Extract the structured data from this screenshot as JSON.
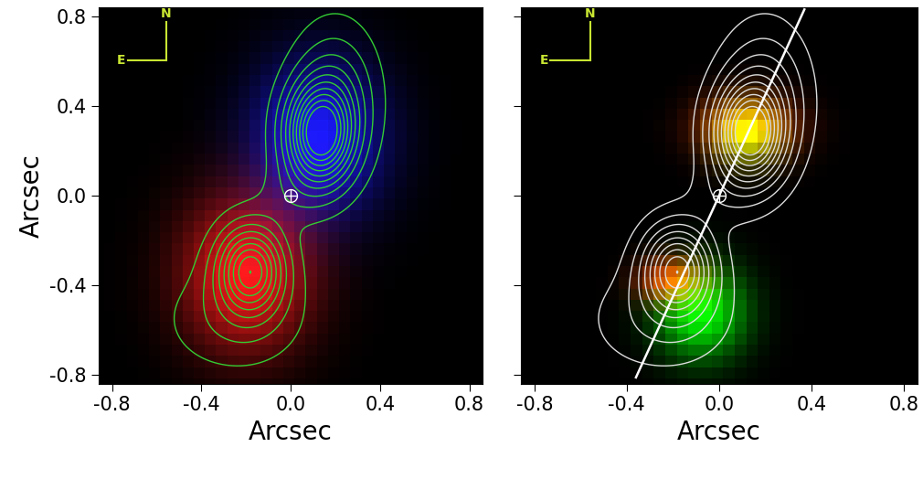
{
  "chart_data": [
    {
      "type": "image",
      "xlabel": "Arcsec",
      "ylabel": "Arcsec",
      "xlim": [
        -0.86,
        0.86
      ],
      "ylim": [
        -0.84,
        0.84
      ],
      "xticks": [
        -0.8,
        -0.4,
        0.0,
        0.4,
        0.8
      ],
      "yticks": [
        -0.8,
        -0.4,
        0.0,
        0.4,
        0.8
      ],
      "tick_labels": true,
      "compass": {
        "north": "N",
        "east": "E",
        "color": "#c8e632"
      },
      "center": [
        0.0,
        0.0
      ],
      "emission": [
        {
          "x": 0.12,
          "y": 0.25,
          "sx": 0.2,
          "sy": 0.24,
          "amp": 1.0,
          "color": "#1a1aff"
        },
        {
          "x": -0.2,
          "y": -0.35,
          "sx": 0.2,
          "sy": 0.24,
          "amp": 1.0,
          "color": "#ff1a1a"
        }
      ],
      "contours": {
        "color": "#33cc33",
        "components": [
          {
            "x": 0.13,
            "y": 0.27,
            "sx": 0.1,
            "sy": 0.15,
            "amp": 1.0
          },
          {
            "x": 0.2,
            "y": 0.45,
            "sx": 0.12,
            "sy": 0.2,
            "amp": 0.3
          },
          {
            "x": -0.18,
            "y": -0.33,
            "sx": 0.1,
            "sy": 0.13,
            "amp": 0.8
          },
          {
            "x": -0.25,
            "y": -0.55,
            "sx": 0.2,
            "sy": 0.15,
            "amp": 0.15
          },
          {
            "x": 0.0,
            "y": 0.0,
            "sx": 0.1,
            "sy": 0.1,
            "amp": 0.08
          }
        ],
        "levels": [
          0.06,
          0.15,
          0.25,
          0.35,
          0.45,
          0.55,
          0.65,
          0.75,
          0.85,
          0.95
        ]
      }
    },
    {
      "type": "image",
      "xlabel": "Arcsec",
      "xlim": [
        -0.86,
        0.86
      ],
      "ylim": [
        -0.84,
        0.84
      ],
      "xticks": [
        -0.8,
        -0.4,
        0.0,
        0.4,
        0.8
      ],
      "yticks": [
        -0.8,
        -0.4,
        0.0,
        0.4,
        0.8
      ],
      "tick_labels": "x",
      "compass": {
        "north": "N",
        "east": "E",
        "color": "#c8e632"
      },
      "center": [
        0.0,
        0.0
      ],
      "emission": [
        {
          "x": 0.12,
          "y": 0.3,
          "sx": 0.14,
          "sy": 0.1,
          "amp": 1.1,
          "color": "#ff2000"
        },
        {
          "x": 0.12,
          "y": 0.28,
          "sx": 0.1,
          "sy": 0.09,
          "amp": 0.9,
          "color": "#00ff00"
        },
        {
          "x": -0.2,
          "y": -0.38,
          "sx": 0.1,
          "sy": 0.07,
          "amp": 1.0,
          "color": "#ff2000"
        },
        {
          "x": -0.08,
          "y": -0.52,
          "sx": 0.13,
          "sy": 0.14,
          "amp": 1.0,
          "color": "#00ff00"
        }
      ],
      "contours": {
        "color": "#dddddd",
        "components": [
          {
            "x": 0.13,
            "y": 0.27,
            "sx": 0.1,
            "sy": 0.15,
            "amp": 1.0
          },
          {
            "x": 0.2,
            "y": 0.45,
            "sx": 0.12,
            "sy": 0.2,
            "amp": 0.3
          },
          {
            "x": -0.18,
            "y": -0.33,
            "sx": 0.1,
            "sy": 0.13,
            "amp": 0.8
          },
          {
            "x": -0.25,
            "y": -0.55,
            "sx": 0.2,
            "sy": 0.15,
            "amp": 0.15
          },
          {
            "x": 0.0,
            "y": 0.0,
            "sx": 0.1,
            "sy": 0.1,
            "amp": 0.08
          }
        ],
        "levels": [
          0.06,
          0.15,
          0.25,
          0.35,
          0.45,
          0.55,
          0.65,
          0.75,
          0.85,
          0.95
        ]
      },
      "line": {
        "x": [
          -0.36,
          0.37
        ],
        "y": [
          -0.81,
          0.83
        ],
        "color": "#ffffff"
      }
    }
  ]
}
